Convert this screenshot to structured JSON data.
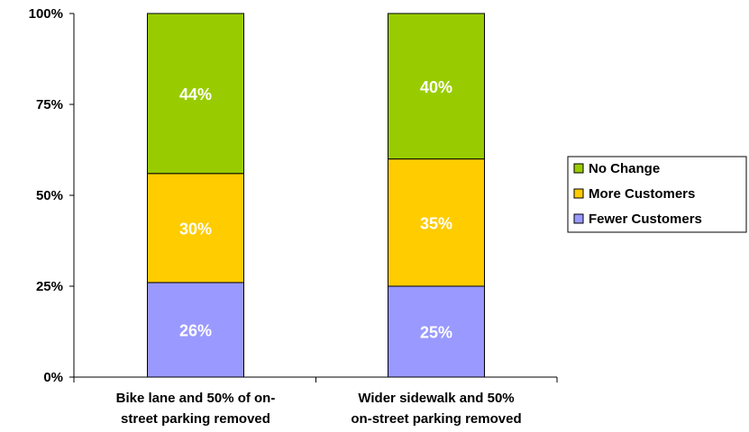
{
  "chart_data": {
    "type": "bar",
    "stacked": true,
    "percent": true,
    "categories": [
      [
        "Bike lane and 50% of on-",
        "street parking removed"
      ],
      [
        "Wider sidewalk and 50%",
        "on-street parking removed"
      ]
    ],
    "series": [
      {
        "name": "Fewer Customers",
        "values": [
          26,
          25
        ],
        "labels": [
          "26%",
          "25%"
        ],
        "color": "#9999ff"
      },
      {
        "name": "More Customers",
        "values": [
          30,
          35
        ],
        "labels": [
          "30%",
          "35%"
        ],
        "color": "#ffcc00"
      },
      {
        "name": "No Change",
        "values": [
          44,
          40
        ],
        "labels": [
          "44%",
          "40%"
        ],
        "color": "#99cc00"
      }
    ],
    "ylim": [
      0,
      100
    ],
    "yticks": [
      0,
      25,
      50,
      75,
      100
    ],
    "ytick_labels": [
      "0%",
      "25%",
      "50%",
      "75%",
      "100%"
    ],
    "title": "",
    "xlabel": "",
    "ylabel": "",
    "legend": {
      "position": "right",
      "order": [
        "No Change",
        "More Customers",
        "Fewer Customers"
      ]
    },
    "grid": false
  }
}
